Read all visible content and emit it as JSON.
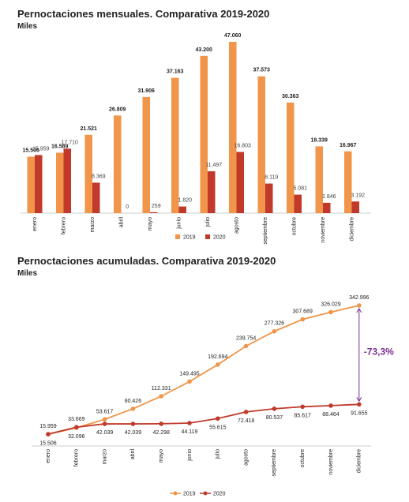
{
  "chart_data": [
    {
      "type": "bar",
      "title": "Pernoctaciones mensuales. Comparativa 2019-2020",
      "subtitle": "Miles",
      "categories": [
        "enero",
        "febrero",
        "marzo",
        "abril",
        "mayo",
        "junio",
        "julio",
        "agosto",
        "septiembre",
        "octubre",
        "noviembre",
        "diciembre"
      ],
      "series": [
        {
          "name": "2019",
          "color": "#f0954a",
          "values": [
            15506,
            16589,
            21521,
            26809,
            31906,
            37163,
            43200,
            47060,
            37573,
            30363,
            18339,
            16967
          ],
          "value_labels": [
            "15.506",
            "16.589",
            "21.521",
            "26.809",
            "31.906",
            "37.163",
            "43.200",
            "47.060",
            "37.573",
            "30.363",
            "18.339",
            "16.967"
          ]
        },
        {
          "name": "2020",
          "color": "#c0392b",
          "values": [
            15959,
            17710,
            8369,
            0,
            259,
            1820,
            11497,
            16803,
            8119,
            5081,
            2846,
            3192
          ],
          "value_labels": [
            "15.959",
            "17.710",
            "8.369",
            "0",
            "259",
            "1.820",
            "11.497",
            "16.803",
            "8.119",
            "5.081",
            "2.846",
            "3.192"
          ]
        }
      ]
    },
    {
      "type": "line",
      "title": "Pernoctaciones acumuladas. Comparativa 2019-2020",
      "subtitle": "Miles",
      "categories": [
        "enero",
        "febrero",
        "marzo",
        "abril",
        "mayo",
        "junio",
        "julio",
        "agosto",
        "septiembre",
        "octubre",
        "noviembre",
        "diciembre"
      ],
      "series": [
        {
          "name": "2019",
          "color": "#f0954a",
          "values": [
            15506,
            32096,
            53617,
            80426,
            112331,
            149495,
            192694,
            239754,
            277326,
            307689,
            326029,
            342996
          ],
          "value_labels": [
            "15.506",
            "32.096",
            "53.617",
            "80.426",
            "112.331",
            "149.495",
            "192.694",
            "239.754",
            "277.326",
            "307.689",
            "326.029",
            "342.996"
          ]
        },
        {
          "name": "2020",
          "color": "#c0392b",
          "values": [
            15959,
            33669,
            42039,
            42039,
            42298,
            44119,
            55615,
            72418,
            80537,
            85617,
            88464,
            91655
          ],
          "value_labels": [
            "15.959",
            "33.669",
            "42.039",
            "42.039",
            "42.298",
            "44.119",
            "55.615",
            "72.418",
            "80.537",
            "85.617",
            "88.464",
            "91.655"
          ]
        }
      ],
      "annotation": "-73,3%"
    }
  ]
}
